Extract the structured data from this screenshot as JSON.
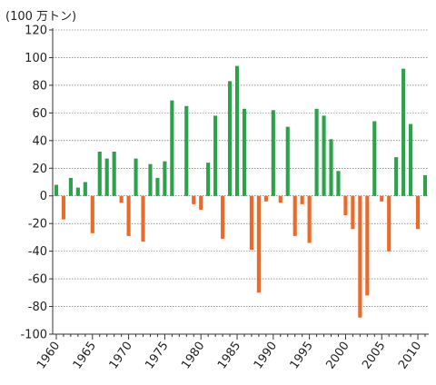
{
  "chart_data": {
    "type": "bar",
    "unit_label": "(100 万トン)",
    "ylim": [
      -100,
      120
    ],
    "y_ticks": [
      -100,
      -80,
      -60,
      -40,
      -20,
      0,
      20,
      40,
      60,
      80,
      100,
      120
    ],
    "y_tick_labels": [
      "-100",
      "-80",
      "-60",
      "-40",
      "-20",
      "0",
      "20",
      "40",
      "60",
      "80",
      "100",
      "120"
    ],
    "x_tick_labels": [
      "1960",
      "1965",
      "1970",
      "1975",
      "1980",
      "1985",
      "1990",
      "1995",
      "2000",
      "2005",
      "2010"
    ],
    "grid": "horizontal dotted",
    "colors": {
      "positive": "#2ca24b",
      "negative": "#ea6a2b"
    },
    "years": [
      1960,
      1961,
      1962,
      1963,
      1964,
      1965,
      1966,
      1967,
      1968,
      1969,
      1970,
      1971,
      1972,
      1973,
      1974,
      1975,
      1976,
      1977,
      1978,
      1979,
      1980,
      1981,
      1982,
      1983,
      1984,
      1985,
      1986,
      1987,
      1988,
      1989,
      1990,
      1991,
      1992,
      1993,
      1994,
      1995,
      1996,
      1997,
      1998,
      1999,
      2000,
      2001,
      2002,
      2003,
      2004,
      2005,
      2006,
      2007,
      2008,
      2009,
      2010,
      2011
    ],
    "values": [
      8,
      -17,
      13,
      6,
      10,
      -27,
      32,
      27,
      32,
      -5,
      -29,
      27,
      -33,
      23,
      13,
      25,
      69,
      0,
      65,
      -6,
      -10,
      24,
      58,
      -31,
      83,
      94,
      63,
      -39,
      -70,
      -4,
      62,
      -5,
      50,
      -29,
      -6,
      -34,
      63,
      58,
      41,
      18,
      -14,
      -24,
      -88,
      -72,
      54,
      -4,
      -40,
      28,
      92,
      52,
      -24,
      15
    ]
  }
}
